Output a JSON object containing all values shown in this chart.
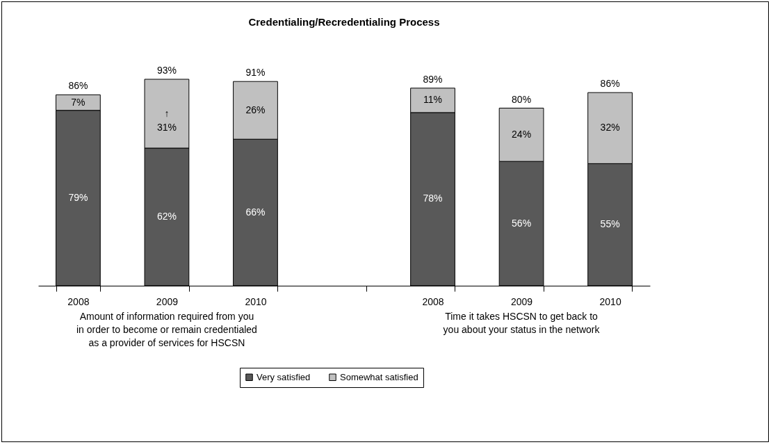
{
  "chart_data": {
    "type": "bar",
    "title": "Credentialing/Recredentialing Process",
    "categories": [
      "2008",
      "2009",
      "2010",
      null,
      "2008",
      "2009",
      "2010"
    ],
    "stacked": true,
    "series": [
      {
        "name": "Very satisfied",
        "color": "#595959",
        "values": [
          79,
          62,
          66,
          null,
          78,
          56,
          55
        ],
        "value_labels": [
          "79%",
          "62%",
          "66%",
          null,
          "78%",
          "56%",
          "55%"
        ]
      },
      {
        "name": "Somewhat satisfied",
        "color": "#c0c0c0",
        "values": [
          7,
          31,
          26,
          null,
          11,
          24,
          32
        ],
        "value_labels": [
          "7%",
          "↑\n31%",
          "26%",
          null,
          "11%",
          "24%",
          "32%"
        ]
      }
    ],
    "totals": [
      "86%",
      "93%",
      "91%",
      null,
      "89%",
      "80%",
      "86%"
    ],
    "annotations": [
      "Amount of information required from you\nin order to become or remain credentialed\nas a provider of services for HSCSN",
      "Time it takes HSCSN to get back to\nyou about your status in the network"
    ],
    "legend": "bottom",
    "grid": false
  }
}
